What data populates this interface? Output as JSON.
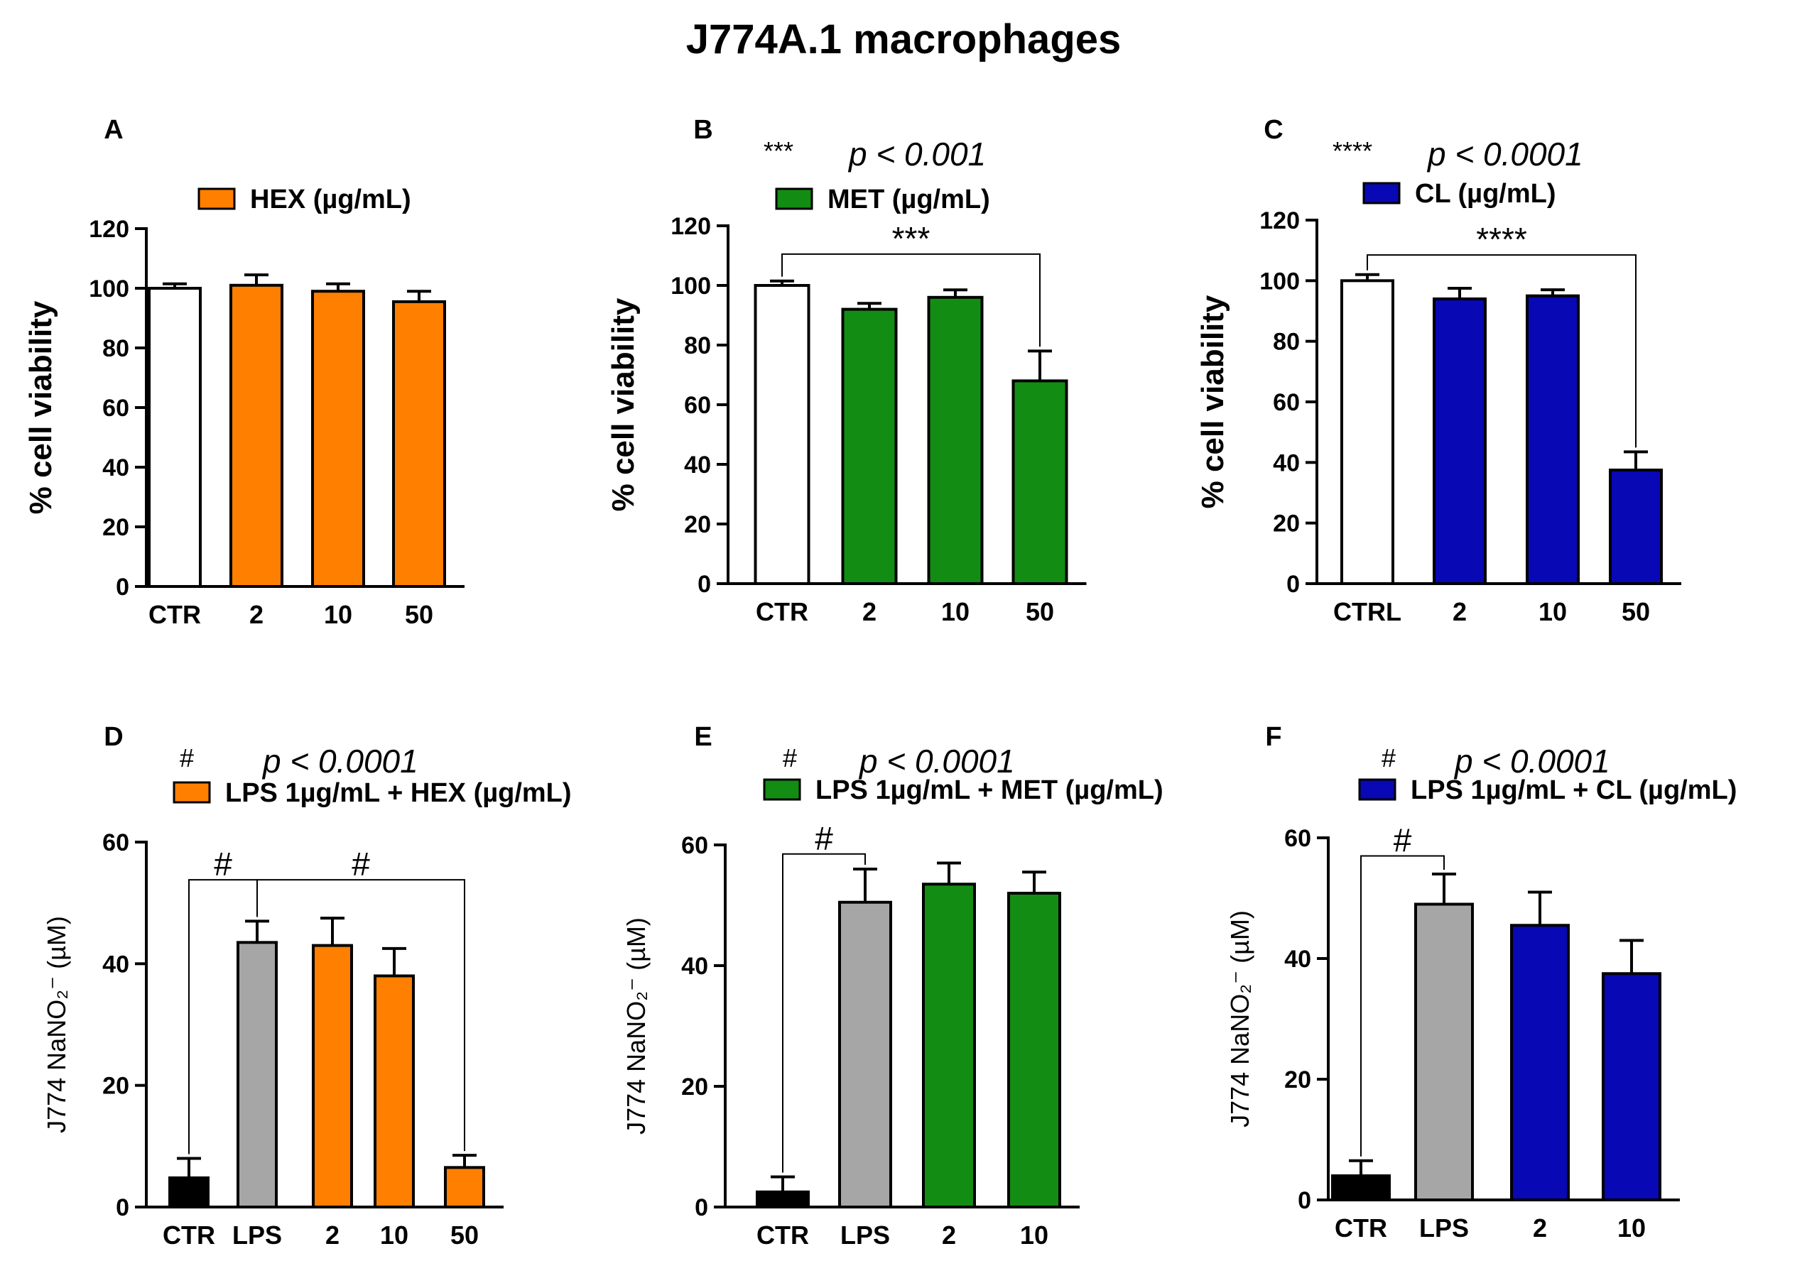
{
  "figure_title": "J774A.1 macrophages",
  "chart_data": [
    {
      "type": "bar",
      "panel": "A",
      "legend": "HEX (µg/mL)",
      "ylabel": "% cell viability",
      "ylim": [
        0,
        120
      ],
      "yticks": [
        0,
        20,
        40,
        60,
        80,
        100,
        120
      ],
      "categories": [
        "CTR",
        "2",
        "10",
        "50"
      ],
      "values": [
        100,
        101,
        99,
        95.5
      ],
      "errors": [
        1.5,
        3.5,
        2.5,
        3.5
      ],
      "bar_colors": [
        "#ffffff",
        "#ff7f00",
        "#ff7f00",
        "#ff7f00"
      ],
      "note": null,
      "comparisons": []
    },
    {
      "type": "bar",
      "panel": "B",
      "legend": "MET (µg/mL)",
      "ylabel": "% cell viability",
      "ylim": [
        0,
        120
      ],
      "yticks": [
        0,
        20,
        40,
        60,
        80,
        100,
        120
      ],
      "categories": [
        "CTR",
        "2",
        "10",
        "50"
      ],
      "values": [
        100,
        92,
        96,
        68
      ],
      "errors": [
        1.5,
        2,
        2.5,
        10
      ],
      "bar_colors": [
        "#ffffff",
        "#138c13",
        "#138c13",
        "#138c13"
      ],
      "note": {
        "symbol": "***",
        "text": "p < 0.001"
      },
      "comparisons": [
        {
          "from": 0,
          "to": 3,
          "label": "***",
          "level": 110.5
        }
      ]
    },
    {
      "type": "bar",
      "panel": "C",
      "legend": "CL (µg/mL)",
      "ylabel": "% cell viability",
      "ylim": [
        0,
        120
      ],
      "yticks": [
        0,
        20,
        40,
        60,
        80,
        100,
        120
      ],
      "categories": [
        "CTRL",
        "2",
        "10",
        "50"
      ],
      "values": [
        100,
        94,
        95,
        37.5
      ],
      "errors": [
        2,
        3.5,
        2,
        6
      ],
      "bar_colors": [
        "#ffffff",
        "#0808b4",
        "#0808b4",
        "#0808b4"
      ],
      "note": {
        "symbol": "****",
        "text": "p < 0.0001"
      },
      "comparisons": [
        {
          "from": 0,
          "to": 3,
          "label": "****",
          "level": 108.5
        }
      ]
    },
    {
      "type": "bar",
      "panel": "D",
      "legend": "LPS 1µg/mL + HEX (µg/mL)",
      "ylabel": "J774 NaNO₂⁻ (µM)",
      "ylim": [
        0,
        60
      ],
      "yticks": [
        0,
        20,
        40,
        60
      ],
      "categories": [
        "CTR",
        "LPS",
        "2",
        "10",
        "50"
      ],
      "values": [
        4.8,
        43.5,
        43,
        38,
        6.5
      ],
      "errors": [
        3.2,
        3.5,
        4.5,
        4.5,
        2
      ],
      "bar_colors": [
        "#000000",
        "#a6a6a6",
        "#ff7f00",
        "#ff7f00",
        "#ff7f00"
      ],
      "note": {
        "symbol": "#",
        "text": "p < 0.0001"
      },
      "comparisons": [
        {
          "from": 0,
          "to": 1,
          "label": "#",
          "level": 53.8
        },
        {
          "from": 1,
          "to": 4,
          "label": "#",
          "level": 53.8
        }
      ]
    },
    {
      "type": "bar",
      "panel": "E",
      "legend": "LPS 1µg/mL + MET (µg/mL)",
      "ylabel": "J774 NaNO₂⁻ (µM)",
      "ylim": [
        0,
        60
      ],
      "yticks": [
        0,
        20,
        40,
        60
      ],
      "categories": [
        "CTR",
        "LPS",
        "2",
        "10"
      ],
      "values": [
        2.5,
        50.5,
        53.5,
        52
      ],
      "errors": [
        2.5,
        5.5,
        3.5,
        3.5
      ],
      "bar_colors": [
        "#000000",
        "#a6a6a6",
        "#138c13",
        "#138c13"
      ],
      "note": {
        "symbol": "#",
        "text": "p < 0.0001"
      },
      "comparisons": [
        {
          "from": 0,
          "to": 1,
          "label": "#",
          "level": 58.5
        }
      ]
    },
    {
      "type": "bar",
      "panel": "F",
      "legend": "LPS 1µg/mL + CL (µg/mL)",
      "ylabel": "J774 NaNO₂⁻ (µM)",
      "ylim": [
        0,
        60
      ],
      "yticks": [
        0,
        20,
        40,
        60
      ],
      "categories": [
        "CTR",
        "LPS",
        "2",
        "10"
      ],
      "values": [
        4,
        49,
        45.5,
        37.5
      ],
      "errors": [
        2.5,
        5,
        5.5,
        5.5
      ],
      "bar_colors": [
        "#000000",
        "#a6a6a6",
        "#0808b4",
        "#0808b4"
      ],
      "note": {
        "symbol": "#",
        "text": "p < 0.0001"
      },
      "comparisons": [
        {
          "from": 0,
          "to": 1,
          "label": "#",
          "level": 57
        }
      ]
    }
  ]
}
